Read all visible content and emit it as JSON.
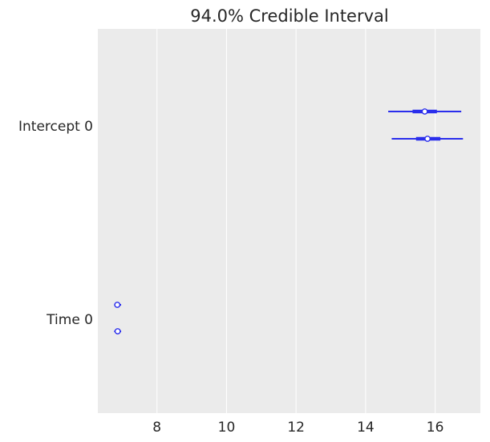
{
  "chart_data": {
    "type": "forest",
    "title": "94.0% Credible Interval",
    "xlabel": "",
    "ylabel": "",
    "xlim": [
      6.3,
      17.3
    ],
    "xticks": [
      8,
      10,
      12,
      14,
      16
    ],
    "grid": "x-only",
    "background": "#ebebeb",
    "colors": {
      "line": "#2a2eec",
      "marker_fill": "#ffffff"
    },
    "variables": [
      {
        "label": "Intercept 0",
        "chains": [
          {
            "hdi_low": 14.65,
            "iqr_low": 15.35,
            "median": 15.7,
            "iqr_high": 16.05,
            "hdi_high": 16.75
          },
          {
            "hdi_low": 14.75,
            "iqr_low": 15.45,
            "median": 15.78,
            "iqr_high": 16.15,
            "hdi_high": 16.8
          }
        ]
      },
      {
        "label": "Time 0",
        "chains": [
          {
            "hdi_low": 6.77,
            "iqr_low": 6.83,
            "median": 6.86,
            "iqr_high": 6.9,
            "hdi_high": 6.97
          },
          {
            "hdi_low": 6.77,
            "iqr_low": 6.83,
            "median": 6.87,
            "iqr_high": 6.91,
            "hdi_high": 6.97
          }
        ]
      }
    ]
  }
}
